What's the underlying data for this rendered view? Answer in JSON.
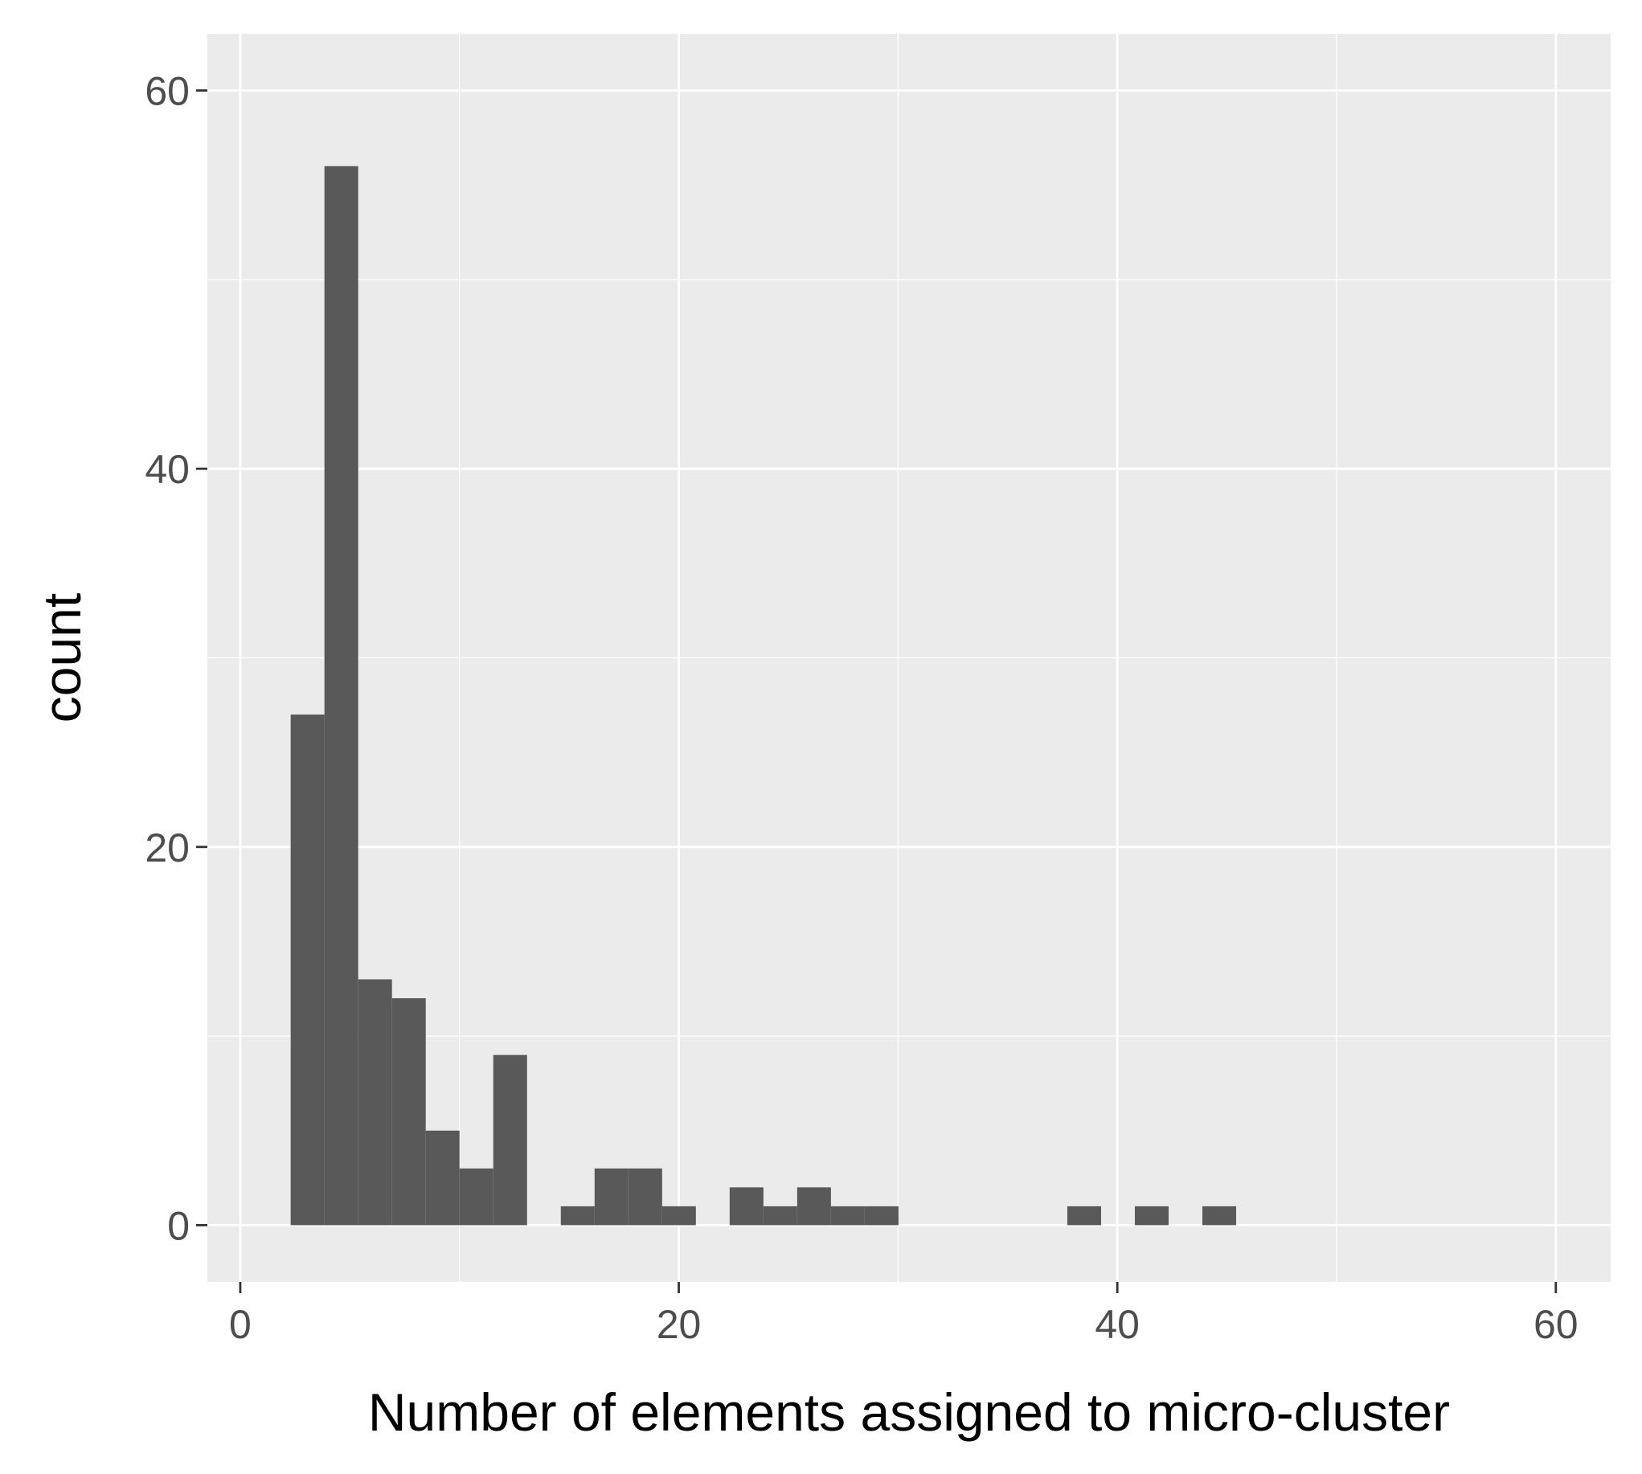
{
  "chart_data": {
    "type": "bar",
    "subtype": "histogram",
    "title": "",
    "xlabel": "Number of elements assigned to micro-cluster",
    "ylabel": "count",
    "xlim": [
      -1.5,
      62.5
    ],
    "ylim": [
      -3,
      63
    ],
    "x_ticks": [
      0,
      20,
      40,
      60
    ],
    "y_ticks": [
      0,
      20,
      40,
      60
    ],
    "x_tick_labels": [
      "0",
      "20",
      "40",
      "60"
    ],
    "y_tick_labels": [
      "0",
      "20",
      "40",
      "60"
    ],
    "x_minor_gridlines": [
      10,
      30,
      50
    ],
    "y_minor_gridlines": [
      10,
      30,
      50
    ],
    "grid": true,
    "bin_width": 1.54,
    "bars": [
      {
        "x0": 2.3,
        "x1": 3.84,
        "count": 27
      },
      {
        "x0": 3.84,
        "x1": 5.38,
        "count": 56
      },
      {
        "x0": 5.38,
        "x1": 6.92,
        "count": 13
      },
      {
        "x0": 6.92,
        "x1": 8.46,
        "count": 12
      },
      {
        "x0": 8.46,
        "x1": 10.0,
        "count": 5
      },
      {
        "x0": 10.0,
        "x1": 11.54,
        "count": 3
      },
      {
        "x0": 11.54,
        "x1": 13.08,
        "count": 9
      },
      {
        "x0": 14.62,
        "x1": 16.16,
        "count": 1
      },
      {
        "x0": 16.16,
        "x1": 17.7,
        "count": 3
      },
      {
        "x0": 17.7,
        "x1": 19.24,
        "count": 3
      },
      {
        "x0": 19.24,
        "x1": 20.78,
        "count": 1
      },
      {
        "x0": 22.32,
        "x1": 23.86,
        "count": 2
      },
      {
        "x0": 23.86,
        "x1": 25.4,
        "count": 1
      },
      {
        "x0": 25.4,
        "x1": 26.94,
        "count": 2
      },
      {
        "x0": 26.94,
        "x1": 28.48,
        "count": 1
      },
      {
        "x0": 28.48,
        "x1": 30.02,
        "count": 1
      },
      {
        "x0": 37.72,
        "x1": 39.26,
        "count": 1
      },
      {
        "x0": 40.8,
        "x1": 42.34,
        "count": 1
      },
      {
        "x0": 43.88,
        "x1": 45.42,
        "count": 1
      }
    ],
    "colors": {
      "panel_background": "#ebebeb",
      "gridline": "#ffffff",
      "bar_fill": "#595959",
      "tick_mark": "#333333"
    }
  }
}
